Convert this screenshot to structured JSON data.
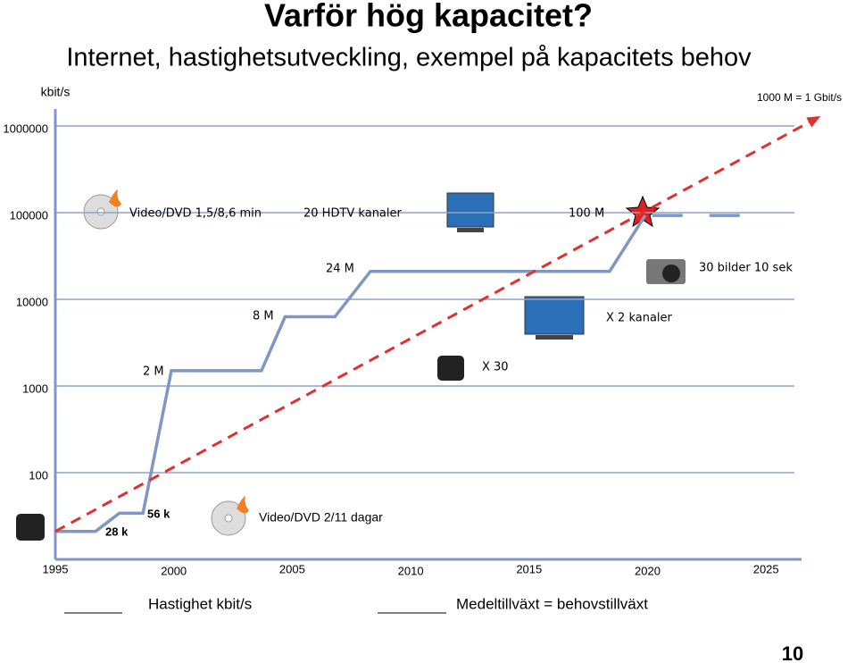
{
  "title": "Varför hög kapacitet?",
  "subtitle": "Internet, hastighetsutveckling, exempel på kapacitets behov",
  "page_number": "10",
  "chart_data": {
    "type": "line",
    "y_label": "kbit/s",
    "log_scale": true,
    "grid": true,
    "xlim": [
      1995,
      2026.5
    ],
    "ylim": [
      10,
      1570000
    ],
    "xticks": [
      1995,
      2000,
      2005,
      2010,
      2015,
      2020,
      2025
    ],
    "yticks": [
      100,
      1000,
      10000,
      100000,
      1000000
    ],
    "series": [
      {
        "name": "Hastighet kbit/s",
        "color": "#8096c4",
        "x": [
          1995,
          1996.7,
          1997.7,
          1998.7,
          1999.9,
          2003.7,
          2004.7,
          2006.8,
          2008.3,
          2018.4,
          2019.9
        ],
        "values": [
          21,
          21,
          34,
          34,
          1500,
          1500,
          6300,
          6300,
          21000,
          21000,
          93000
        ]
      },
      {
        "name": "Medeltillväxt = behovstillväxt",
        "color": "#e03030",
        "x": [
          1995,
          2027.3
        ],
        "values": [
          21,
          1300000
        ]
      },
      {
        "color": "#8096c4",
        "dash": true,
        "x": [
          2020.2,
          2025
        ],
        "values": [
          93000,
          93000
        ]
      }
    ],
    "annotations": [
      "1000 M = 1 Gbit/s",
      "Video/DVD 1,5/8,6 min",
      "20 HDTV kanaler",
      "100 M",
      "24 M",
      "30 bilder 10 sek",
      "8 M",
      "X 2 kanaler",
      "2 M",
      "X 30",
      "56 k",
      "28 k",
      "Video/DVD  2/11 dagar"
    ]
  }
}
